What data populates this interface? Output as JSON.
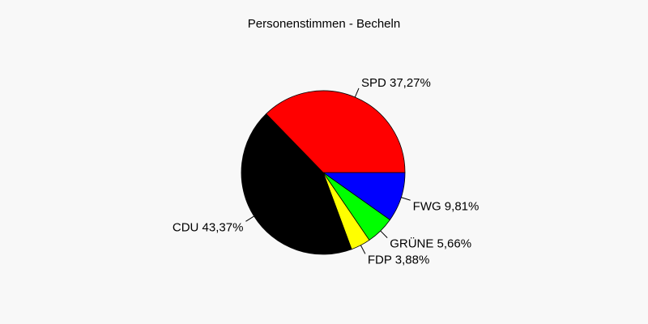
{
  "chart_data": {
    "type": "pie",
    "title": "Personenstimmen - Becheln",
    "slices": [
      {
        "name": "FWG",
        "label": "FWG 9,81%",
        "value": 9.81,
        "color": "#0000ff"
      },
      {
        "name": "GRÜNE",
        "label": "GRÜNE 5,66%",
        "value": 5.66,
        "color": "#00ff00"
      },
      {
        "name": "FDP",
        "label": "FDP 3,88%",
        "value": 3.88,
        "color": "#ffff00"
      },
      {
        "name": "CDU",
        "label": "CDU 43,37%",
        "value": 43.37,
        "color": "#000000"
      },
      {
        "name": "SPD",
        "label": "SPD 37,27%",
        "value": 37.27,
        "color": "#ff0000"
      }
    ]
  }
}
